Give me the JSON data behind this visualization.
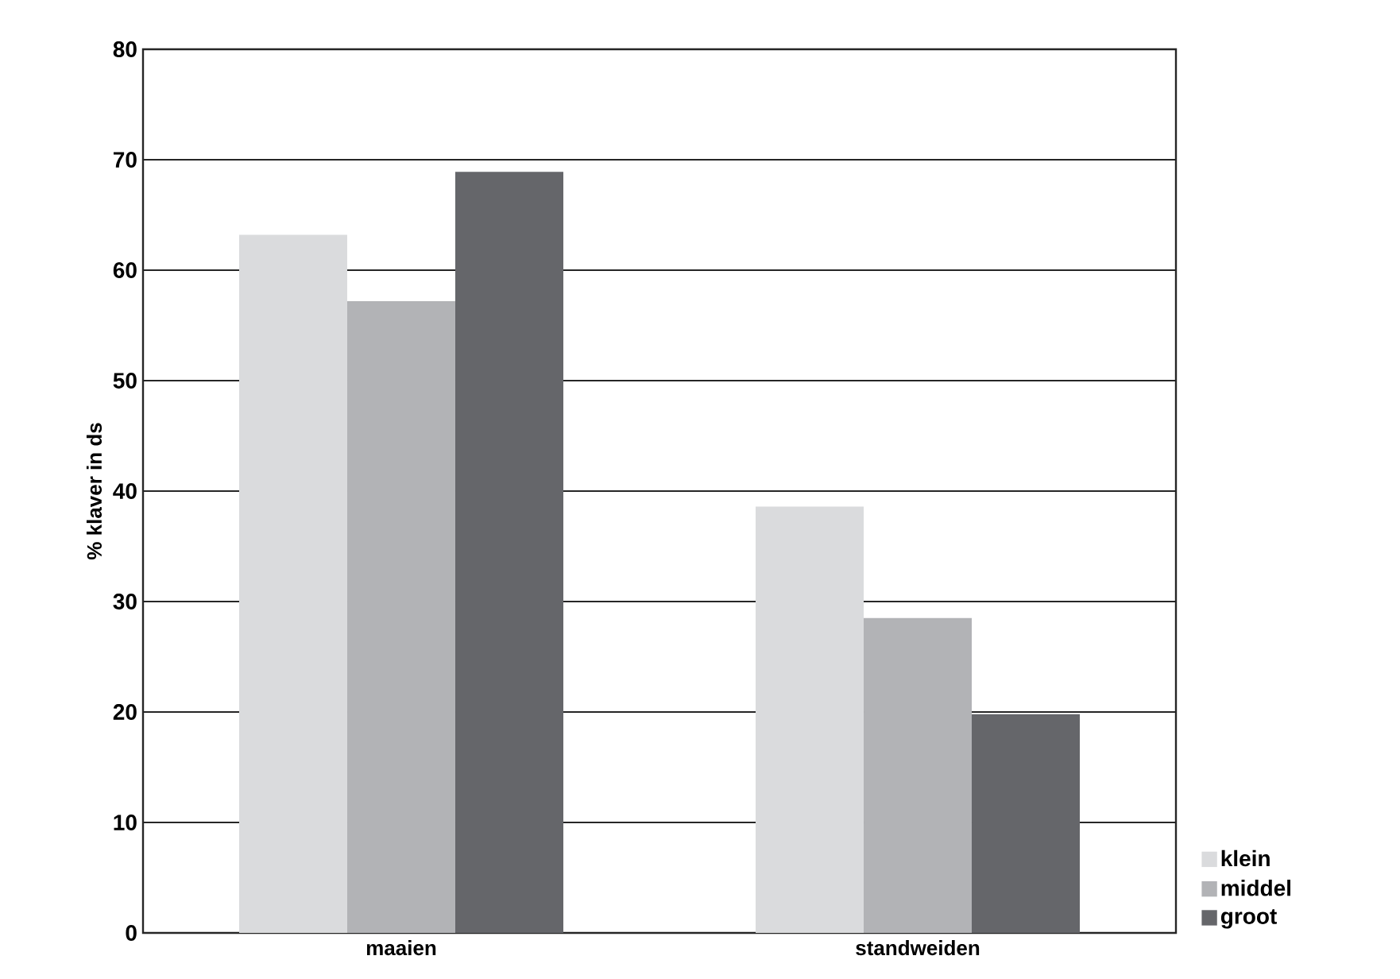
{
  "chart_data": {
    "type": "bar",
    "ylabel": "% klaver in ds",
    "categories": [
      "maaien",
      "standweiden"
    ],
    "series": [
      {
        "name": "klein",
        "color": "#dadbdd",
        "values": [
          63.2,
          38.6
        ]
      },
      {
        "name": "middel",
        "color": "#b2b3b6",
        "values": [
          57.2,
          28.5
        ]
      },
      {
        "name": "groot",
        "color": "#65666a",
        "values": [
          68.9,
          19.8
        ]
      }
    ],
    "ylim": [
      0,
      80
    ],
    "yticks": [
      0,
      10,
      20,
      30,
      40,
      50,
      60,
      70,
      80
    ],
    "grid": "y",
    "legend": "bottom right"
  }
}
